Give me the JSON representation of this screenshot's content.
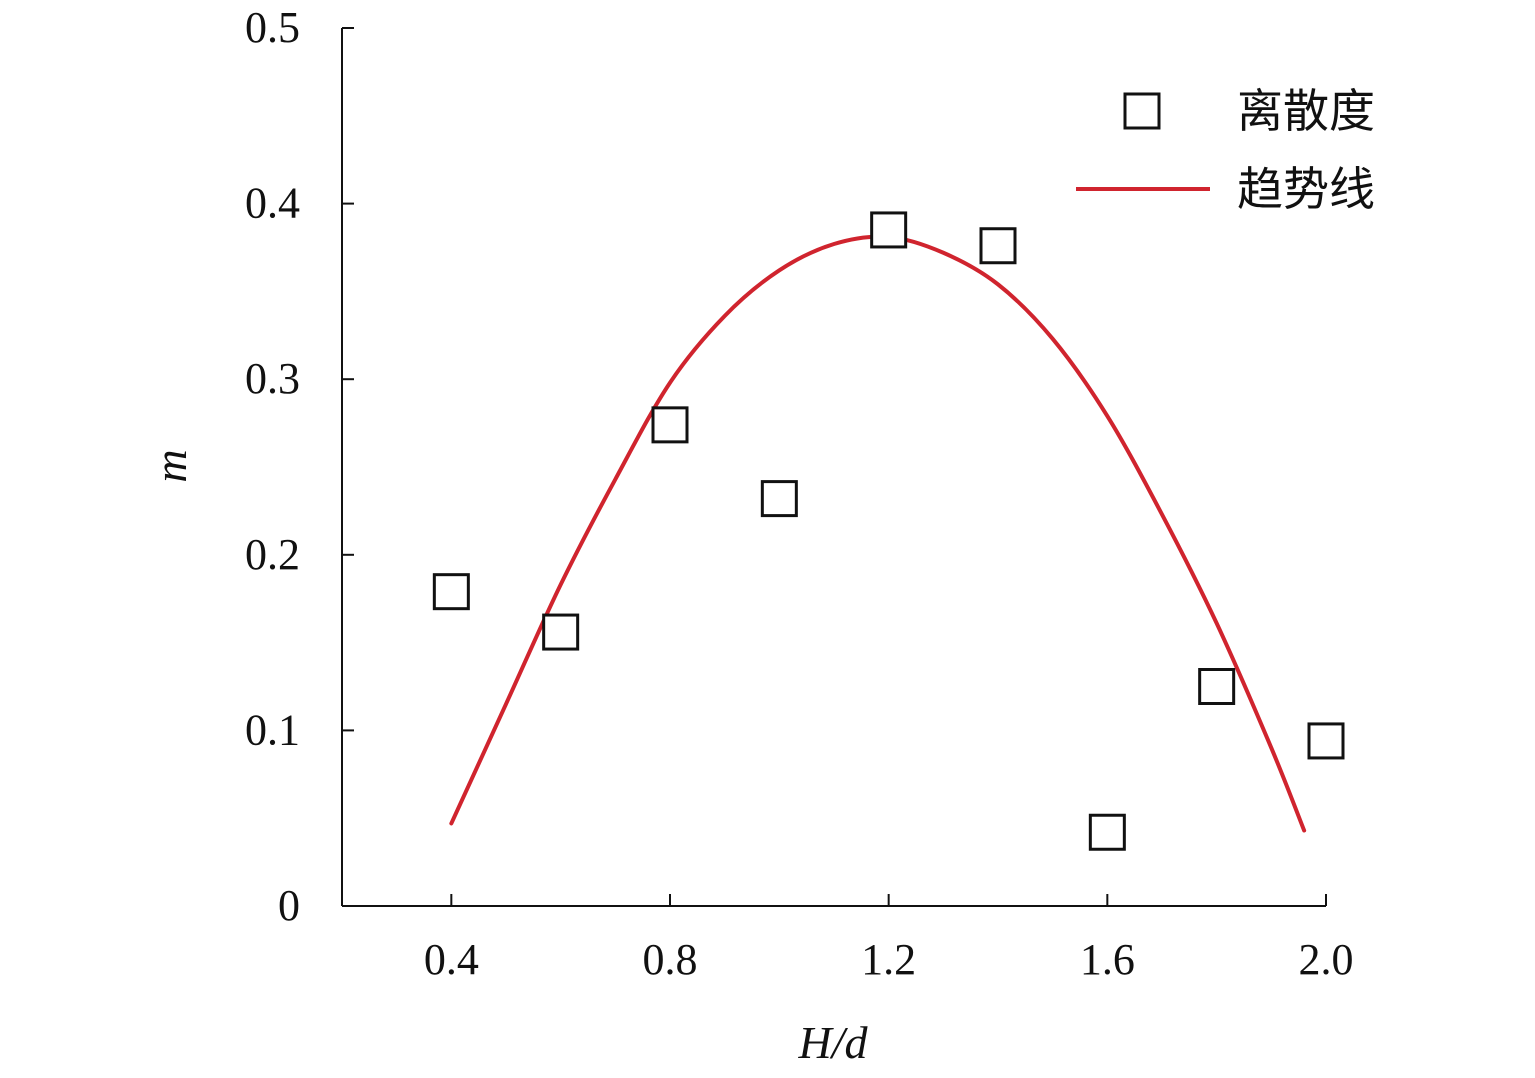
{
  "chart_data": {
    "type": "scatter",
    "title": "",
    "xlabel": "H/d",
    "ylabel": "m",
    "xlim": [
      0.2,
      2.0
    ],
    "ylim": [
      0,
      0.5
    ],
    "x_ticks": [
      0.4,
      0.8,
      1.2,
      1.6,
      2.0
    ],
    "x_tick_labels": [
      "0.4",
      "0.8",
      "1.2",
      "1.6",
      "2.0"
    ],
    "y_ticks": [
      0,
      0.1,
      0.2,
      0.3,
      0.4,
      0.5
    ],
    "y_tick_labels": [
      "0",
      "0.1",
      "0.2",
      "0.3",
      "0.4",
      "0.5"
    ],
    "grid": false,
    "legend_position": "top-right",
    "series": [
      {
        "name": "离散度",
        "kind": "scatter",
        "marker": "open-square",
        "color": "#111111",
        "points": [
          {
            "x": 0.4,
            "y": 0.179
          },
          {
            "x": 0.6,
            "y": 0.156
          },
          {
            "x": 0.8,
            "y": 0.274
          },
          {
            "x": 1.0,
            "y": 0.232
          },
          {
            "x": 1.2,
            "y": 0.385
          },
          {
            "x": 1.4,
            "y": 0.376
          },
          {
            "x": 1.6,
            "y": 0.042
          },
          {
            "x": 1.8,
            "y": 0.125
          },
          {
            "x": 2.0,
            "y": 0.094
          }
        ]
      },
      {
        "name": "趋势线",
        "kind": "line",
        "color": "#d0242e",
        "points": [
          {
            "x": 0.4,
            "y": 0.047
          },
          {
            "x": 0.5,
            "y": 0.115
          },
          {
            "x": 0.6,
            "y": 0.183
          },
          {
            "x": 0.7,
            "y": 0.243
          },
          {
            "x": 0.8,
            "y": 0.298
          },
          {
            "x": 0.9,
            "y": 0.336
          },
          {
            "x": 1.0,
            "y": 0.362
          },
          {
            "x": 1.1,
            "y": 0.377
          },
          {
            "x": 1.2,
            "y": 0.381
          },
          {
            "x": 1.3,
            "y": 0.372
          },
          {
            "x": 1.4,
            "y": 0.354
          },
          {
            "x": 1.5,
            "y": 0.323
          },
          {
            "x": 1.6,
            "y": 0.279
          },
          {
            "x": 1.7,
            "y": 0.223
          },
          {
            "x": 1.8,
            "y": 0.161
          },
          {
            "x": 1.9,
            "y": 0.09
          },
          {
            "x": 1.96,
            "y": 0.043
          }
        ]
      }
    ]
  }
}
